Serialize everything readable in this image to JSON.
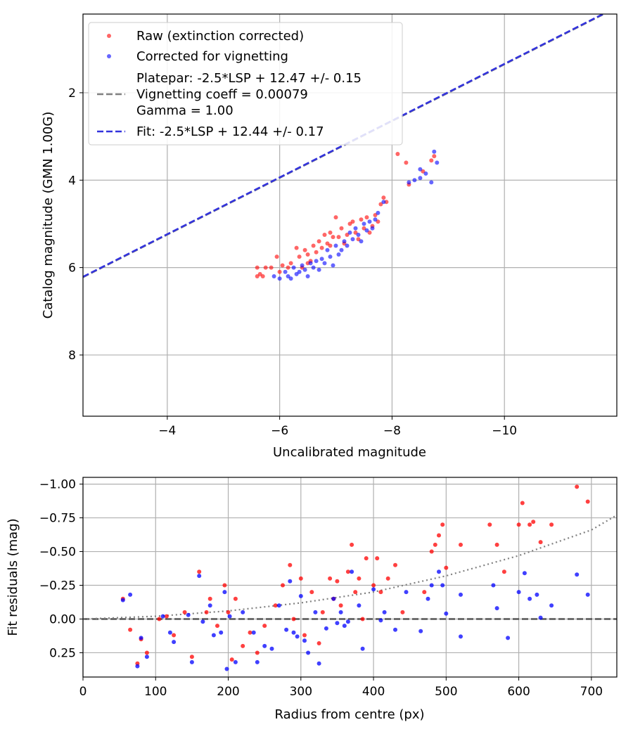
{
  "chart_data": [
    {
      "type": "scatter",
      "id": "top",
      "xlabel": "Uncalibrated magnitude",
      "ylabel": "Catalog magnitude (GMN 1.00G)",
      "xlim": [
        -2.5,
        -12.0
      ],
      "ylim": [
        0.2,
        9.4
      ],
      "x_ticks": [
        -4,
        -6,
        -8,
        -10
      ],
      "x_tick_labels": [
        "−4",
        "−6",
        "−8",
        "−10"
      ],
      "y_ticks": [
        2,
        4,
        6,
        8
      ],
      "y_tick_labels": [
        "2",
        "4",
        "6",
        "8"
      ],
      "grid": true,
      "legend": {
        "placement": "top-left",
        "entries": [
          {
            "label": "Raw (extinction corrected)",
            "kind": "scatter",
            "color": "#ff0000"
          },
          {
            "label": "Corrected for vignetting",
            "kind": "scatter",
            "color": "#0000ff"
          },
          {
            "label": "Platepar: -2.5*LSP + 12.47 +/- 0.15",
            "label_line2": "Vignetting coeff = 0.00079",
            "label_line3": "Gamma = 1.00",
            "kind": "line",
            "color": "#808080",
            "dash": "dashed"
          },
          {
            "label": "Fit: -2.5*LSP + 12.44 +/- 0.17",
            "kind": "line",
            "color": "#3333dd",
            "dash": "dashed"
          }
        ]
      },
      "lines": [
        {
          "name": "Platepar",
          "color": "#808080",
          "x": [
            -2.5,
            -12.0
          ],
          "y": [
            6.22,
            0.05
          ]
        },
        {
          "name": "Fit",
          "color": "#3333dd",
          "x": [
            -2.5,
            -12.0
          ],
          "y": [
            6.21,
            0.04
          ]
        }
      ],
      "series": [
        {
          "name": "Raw (extinction corrected)",
          "color": "#ff0000",
          "points": [
            [
              -5.6,
              6.2
            ],
            [
              -5.6,
              6.0
            ],
            [
              -5.65,
              6.15
            ],
            [
              -5.7,
              6.2
            ],
            [
              -5.75,
              6.0
            ],
            [
              -5.85,
              6.0
            ],
            [
              -5.95,
              5.75
            ],
            [
              -6.0,
              6.1
            ],
            [
              -6.05,
              5.95
            ],
            [
              -6.15,
              6.0
            ],
            [
              -6.2,
              5.9
            ],
            [
              -6.3,
              5.55
            ],
            [
              -6.35,
              5.75
            ],
            [
              -6.4,
              6.0
            ],
            [
              -6.45,
              5.6
            ],
            [
              -6.5,
              5.7
            ],
            [
              -6.5,
              5.9
            ],
            [
              -6.55,
              5.85
            ],
            [
              -6.6,
              5.5
            ],
            [
              -6.65,
              5.65
            ],
            [
              -6.7,
              5.4
            ],
            [
              -6.75,
              5.55
            ],
            [
              -6.8,
              5.25
            ],
            [
              -6.85,
              5.45
            ],
            [
              -6.9,
              5.2
            ],
            [
              -6.9,
              5.5
            ],
            [
              -6.95,
              5.3
            ],
            [
              -7.0,
              4.85
            ],
            [
              -7.05,
              5.3
            ],
            [
              -7.1,
              5.1
            ],
            [
              -7.15,
              5.45
            ],
            [
              -7.2,
              5.25
            ],
            [
              -7.25,
              5.0
            ],
            [
              -7.3,
              4.95
            ],
            [
              -7.35,
              5.2
            ],
            [
              -7.4,
              5.35
            ],
            [
              -7.45,
              4.9
            ],
            [
              -7.5,
              5.1
            ],
            [
              -7.55,
              4.85
            ],
            [
              -7.6,
              5.2
            ],
            [
              -7.65,
              5.05
            ],
            [
              -7.7,
              4.8
            ],
            [
              -7.75,
              4.95
            ],
            [
              -7.8,
              4.55
            ],
            [
              -7.85,
              4.4
            ],
            [
              -7.9,
              4.5
            ],
            [
              -8.1,
              3.4
            ],
            [
              -8.25,
              3.6
            ],
            [
              -8.3,
              4.1
            ],
            [
              -8.55,
              3.8
            ],
            [
              -8.7,
              3.55
            ],
            [
              -8.75,
              3.45
            ]
          ]
        },
        {
          "name": "Corrected for vignetting",
          "color": "#0000ff",
          "points": [
            [
              -5.9,
              6.2
            ],
            [
              -6.0,
              6.25
            ],
            [
              -6.1,
              6.1
            ],
            [
              -6.15,
              6.2
            ],
            [
              -6.2,
              6.25
            ],
            [
              -6.25,
              6.0
            ],
            [
              -6.3,
              6.15
            ],
            [
              -6.35,
              6.1
            ],
            [
              -6.4,
              5.95
            ],
            [
              -6.45,
              6.05
            ],
            [
              -6.5,
              6.2
            ],
            [
              -6.55,
              5.9
            ],
            [
              -6.6,
              6.0
            ],
            [
              -6.65,
              5.85
            ],
            [
              -6.7,
              6.05
            ],
            [
              -6.75,
              5.8
            ],
            [
              -6.8,
              5.9
            ],
            [
              -6.85,
              5.6
            ],
            [
              -6.9,
              5.75
            ],
            [
              -6.95,
              5.95
            ],
            [
              -7.0,
              5.5
            ],
            [
              -7.05,
              5.7
            ],
            [
              -7.1,
              5.6
            ],
            [
              -7.15,
              5.4
            ],
            [
              -7.2,
              5.5
            ],
            [
              -7.25,
              5.2
            ],
            [
              -7.3,
              5.35
            ],
            [
              -7.35,
              5.1
            ],
            [
              -7.4,
              5.25
            ],
            [
              -7.45,
              5.4
            ],
            [
              -7.5,
              5.0
            ],
            [
              -7.55,
              5.15
            ],
            [
              -7.6,
              4.95
            ],
            [
              -7.65,
              5.1
            ],
            [
              -7.7,
              4.9
            ],
            [
              -7.75,
              4.75
            ],
            [
              -7.85,
              4.5
            ],
            [
              -8.3,
              4.05
            ],
            [
              -8.4,
              4.0
            ],
            [
              -8.5,
              3.95
            ],
            [
              -8.5,
              3.75
            ],
            [
              -8.6,
              3.85
            ],
            [
              -8.7,
              4.05
            ],
            [
              -8.75,
              3.35
            ],
            [
              -8.8,
              3.6
            ]
          ]
        }
      ]
    },
    {
      "type": "scatter",
      "id": "bottom",
      "xlabel": "Radius from centre (px)",
      "ylabel": "Fit residuals (mag)",
      "xlim": [
        0,
        735
      ],
      "ylim": [
        -1.05,
        0.43
      ],
      "x_ticks": [
        0,
        100,
        200,
        300,
        400,
        500,
        600,
        700
      ],
      "x_tick_labels": [
        "0",
        "100",
        "200",
        "300",
        "400",
        "500",
        "600",
        "700"
      ],
      "y_ticks": [
        0.25,
        0.0,
        -0.25,
        -0.5,
        -0.75,
        -1.0
      ],
      "y_tick_labels": [
        "0.25",
        "0.00",
        "−0.25",
        "−0.50",
        "−0.75",
        "−1.00"
      ],
      "grid": true,
      "lines": [
        {
          "name": "zero",
          "color": "#555555",
          "dash": "dashed",
          "x": [
            0,
            735
          ],
          "y": [
            0,
            0
          ]
        },
        {
          "name": "vignetting model",
          "color": "#808080",
          "dash": "dotted",
          "x": [
            0,
            100,
            200,
            300,
            400,
            500,
            600,
            700,
            735
          ],
          "y": [
            0,
            -0.02,
            -0.06,
            -0.12,
            -0.2,
            -0.32,
            -0.47,
            -0.66,
            -0.77
          ]
        }
      ],
      "series": [
        {
          "name": "Raw residuals",
          "color": "#ff0000",
          "points": [
            [
              55,
              -0.15
            ],
            [
              65,
              0.08
            ],
            [
              75,
              0.33
            ],
            [
              80,
              0.15
            ],
            [
              88,
              0.25
            ],
            [
              105,
              0.0
            ],
            [
              115,
              -0.02
            ],
            [
              125,
              0.12
            ],
            [
              140,
              -0.05
            ],
            [
              150,
              0.28
            ],
            [
              160,
              -0.35
            ],
            [
              170,
              -0.05
            ],
            [
              175,
              -0.15
            ],
            [
              185,
              0.05
            ],
            [
              195,
              -0.25
            ],
            [
              200,
              -0.05
            ],
            [
              205,
              0.3
            ],
            [
              210,
              -0.15
            ],
            [
              220,
              0.2
            ],
            [
              230,
              0.1
            ],
            [
              240,
              0.25
            ],
            [
              250,
              0.05
            ],
            [
              265,
              -0.1
            ],
            [
              275,
              -0.25
            ],
            [
              285,
              -0.4
            ],
            [
              290,
              0.0
            ],
            [
              300,
              -0.3
            ],
            [
              305,
              0.12
            ],
            [
              315,
              -0.2
            ],
            [
              325,
              0.18
            ],
            [
              330,
              -0.05
            ],
            [
              340,
              -0.3
            ],
            [
              345,
              -0.15
            ],
            [
              350,
              -0.28
            ],
            [
              355,
              -0.1
            ],
            [
              365,
              -0.35
            ],
            [
              370,
              -0.55
            ],
            [
              375,
              -0.2
            ],
            [
              380,
              -0.3
            ],
            [
              385,
              0.0
            ],
            [
              390,
              -0.45
            ],
            [
              400,
              -0.25
            ],
            [
              405,
              -0.45
            ],
            [
              410,
              -0.2
            ],
            [
              420,
              -0.3
            ],
            [
              430,
              -0.4
            ],
            [
              440,
              -0.05
            ],
            [
              470,
              -0.2
            ],
            [
              480,
              -0.5
            ],
            [
              485,
              -0.55
            ],
            [
              490,
              -0.62
            ],
            [
              495,
              -0.7
            ],
            [
              500,
              -0.38
            ],
            [
              520,
              -0.55
            ],
            [
              560,
              -0.7
            ],
            [
              570,
              -0.55
            ],
            [
              580,
              -0.35
            ],
            [
              600,
              -0.7
            ],
            [
              605,
              -0.86
            ],
            [
              615,
              -0.7
            ],
            [
              620,
              -0.72
            ],
            [
              630,
              -0.57
            ],
            [
              645,
              -0.7
            ],
            [
              680,
              -0.98
            ],
            [
              695,
              -0.87
            ]
          ]
        },
        {
          "name": "Corrected residuals",
          "color": "#0000ff",
          "points": [
            [
              55,
              -0.14
            ],
            [
              65,
              -0.18
            ],
            [
              75,
              0.35
            ],
            [
              80,
              0.14
            ],
            [
              88,
              0.28
            ],
            [
              110,
              -0.02
            ],
            [
              120,
              0.1
            ],
            [
              125,
              0.17
            ],
            [
              145,
              -0.03
            ],
            [
              150,
              0.32
            ],
            [
              160,
              -0.32
            ],
            [
              165,
              0.02
            ],
            [
              175,
              -0.1
            ],
            [
              180,
              0.12
            ],
            [
              190,
              0.1
            ],
            [
              195,
              -0.2
            ],
            [
              198,
              0.37
            ],
            [
              202,
              -0.02
            ],
            [
              210,
              0.32
            ],
            [
              220,
              -0.05
            ],
            [
              235,
              0.1
            ],
            [
              240,
              0.32
            ],
            [
              250,
              0.2
            ],
            [
              260,
              0.22
            ],
            [
              270,
              -0.1
            ],
            [
              280,
              0.08
            ],
            [
              285,
              -0.28
            ],
            [
              290,
              0.1
            ],
            [
              295,
              0.13
            ],
            [
              300,
              -0.17
            ],
            [
              305,
              0.16
            ],
            [
              310,
              0.25
            ],
            [
              320,
              -0.05
            ],
            [
              325,
              0.33
            ],
            [
              335,
              0.07
            ],
            [
              345,
              -0.15
            ],
            [
              350,
              0.03
            ],
            [
              355,
              -0.05
            ],
            [
              360,
              0.05
            ],
            [
              365,
              0.02
            ],
            [
              370,
              -0.35
            ],
            [
              380,
              -0.1
            ],
            [
              385,
              0.22
            ],
            [
              400,
              -0.22
            ],
            [
              410,
              0.01
            ],
            [
              415,
              -0.05
            ],
            [
              430,
              0.08
            ],
            [
              445,
              -0.2
            ],
            [
              465,
              0.09
            ],
            [
              475,
              -0.15
            ],
            [
              480,
              -0.25
            ],
            [
              490,
              -0.35
            ],
            [
              495,
              -0.25
            ],
            [
              500,
              -0.04
            ],
            [
              520,
              0.13
            ],
            [
              520,
              -0.18
            ],
            [
              565,
              -0.25
            ],
            [
              570,
              -0.08
            ],
            [
              585,
              0.14
            ],
            [
              600,
              -0.2
            ],
            [
              608,
              -0.34
            ],
            [
              615,
              -0.15
            ],
            [
              625,
              -0.18
            ],
            [
              630,
              -0.01
            ],
            [
              645,
              -0.1
            ],
            [
              680,
              -0.33
            ],
            [
              695,
              -0.18
            ]
          ]
        }
      ]
    }
  ]
}
